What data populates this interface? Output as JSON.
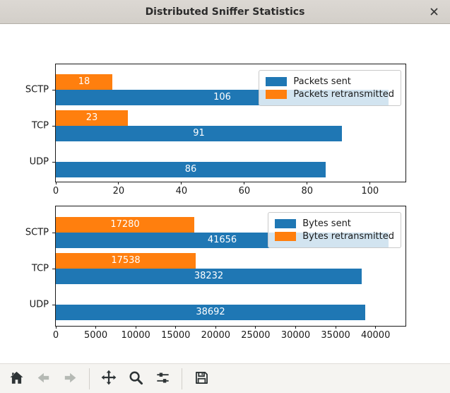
{
  "titlebar": {
    "title": "Distributed Sniffer Statistics",
    "close_icon_glyph": "✕"
  },
  "colors": {
    "sent_blue": "#1f77b4",
    "retransmitted_orange": "#ff7f0e",
    "titlebar_bg": "#d7d3cd",
    "toolbar_bg": "#f5f4f1",
    "figure_bg": "#ffffff"
  },
  "chart_data": [
    {
      "type": "bar",
      "orientation": "horizontal",
      "title": "",
      "categories": [
        "SCTP",
        "TCP",
        "UDP"
      ],
      "series": [
        {
          "name": "Packets sent",
          "color": "#1f77b4",
          "values": [
            106,
            91,
            86
          ]
        },
        {
          "name": "Packets retransmitted",
          "color": "#ff7f0e",
          "values": [
            18,
            23,
            0
          ]
        }
      ],
      "bar_value_labels": true,
      "xlim": [
        0,
        111.3
      ],
      "xticks": [
        0,
        20,
        40,
        60,
        80,
        100
      ],
      "grid": false,
      "legend": {
        "position": "upper right",
        "entries": [
          "Packets sent",
          "Packets retransmitted"
        ]
      }
    },
    {
      "type": "bar",
      "orientation": "horizontal",
      "title": "",
      "categories": [
        "SCTP",
        "TCP",
        "UDP"
      ],
      "series": [
        {
          "name": "Bytes sent",
          "color": "#1f77b4",
          "values": [
            41656,
            38232,
            38692
          ]
        },
        {
          "name": "Bytes retransmitted",
          "color": "#ff7f0e",
          "values": [
            17280,
            17538,
            0
          ]
        }
      ],
      "bar_value_labels": true,
      "xlim": [
        0,
        43740
      ],
      "xticks": [
        0,
        5000,
        10000,
        15000,
        20000,
        25000,
        30000,
        35000,
        40000
      ],
      "grid": false,
      "legend": {
        "position": "upper right",
        "entries": [
          "Bytes sent",
          "Bytes retransmitted"
        ]
      }
    }
  ],
  "toolbar": {
    "buttons": [
      {
        "name": "home",
        "icon": "home-icon",
        "enabled": true
      },
      {
        "name": "back",
        "icon": "back-icon",
        "enabled": false
      },
      {
        "name": "forward",
        "icon": "forward-icon",
        "enabled": false
      },
      {
        "name": "pan",
        "icon": "pan-icon",
        "enabled": true
      },
      {
        "name": "zoom",
        "icon": "zoom-icon",
        "enabled": true
      },
      {
        "name": "configure-subplots",
        "icon": "subplots-icon",
        "enabled": true
      },
      {
        "name": "save",
        "icon": "save-icon",
        "enabled": true
      }
    ]
  }
}
